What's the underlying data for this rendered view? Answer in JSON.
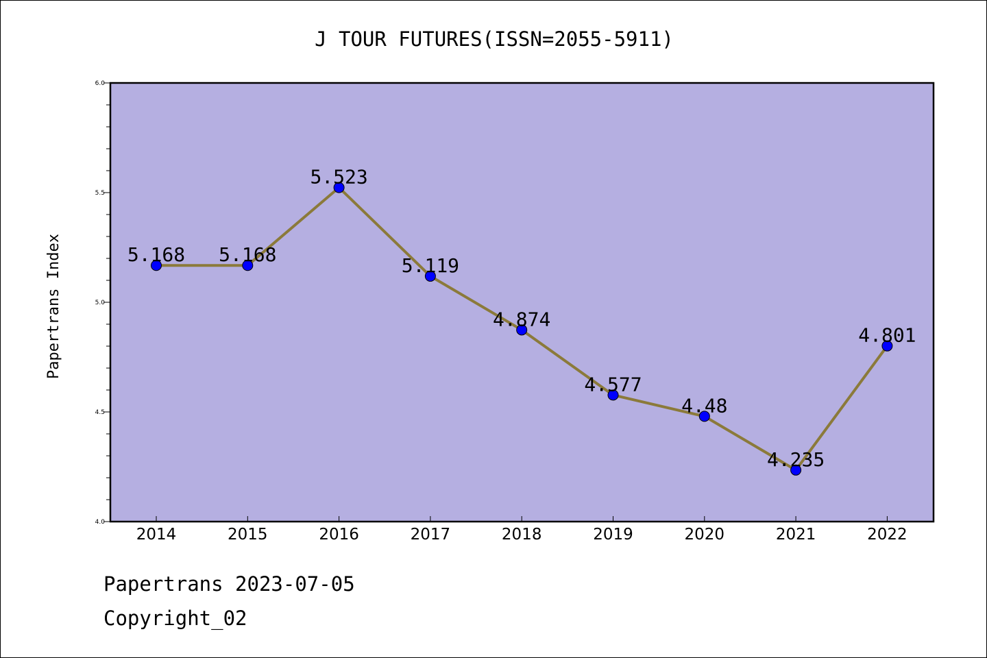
{
  "chart_data": {
    "type": "line",
    "title": "J TOUR FUTURES(ISSN=2055-5911)",
    "xlabel": "",
    "ylabel": "Papertrans Index",
    "categories": [
      "2014",
      "2015",
      "2016",
      "2017",
      "2018",
      "2019",
      "2020",
      "2021",
      "2022"
    ],
    "values": [
      5.168,
      5.168,
      5.523,
      5.119,
      4.874,
      4.577,
      4.48,
      4.235,
      4.801
    ],
    "data_labels": [
      "5.168",
      "5.168",
      "5.523",
      "5.119",
      "4.874",
      "4.577",
      "4.48",
      "4.235",
      "4.801"
    ],
    "ylim": [
      4.0,
      6.0
    ],
    "yticks": [
      4.0,
      4.5,
      5.0,
      5.5,
      6.0
    ],
    "ytick_labels": [
      "4.0",
      "4.5",
      "5.0",
      "5.5",
      "6.0"
    ],
    "grid": false,
    "legend": "none",
    "colors": {
      "plot_background": "#b5afe1",
      "line": "#8b7a3a",
      "marker": "#0000ff",
      "axis": "#000000"
    }
  },
  "footer": {
    "date_line": "Papertrans 2023-07-05",
    "copyright_line": "Copyright_02"
  }
}
